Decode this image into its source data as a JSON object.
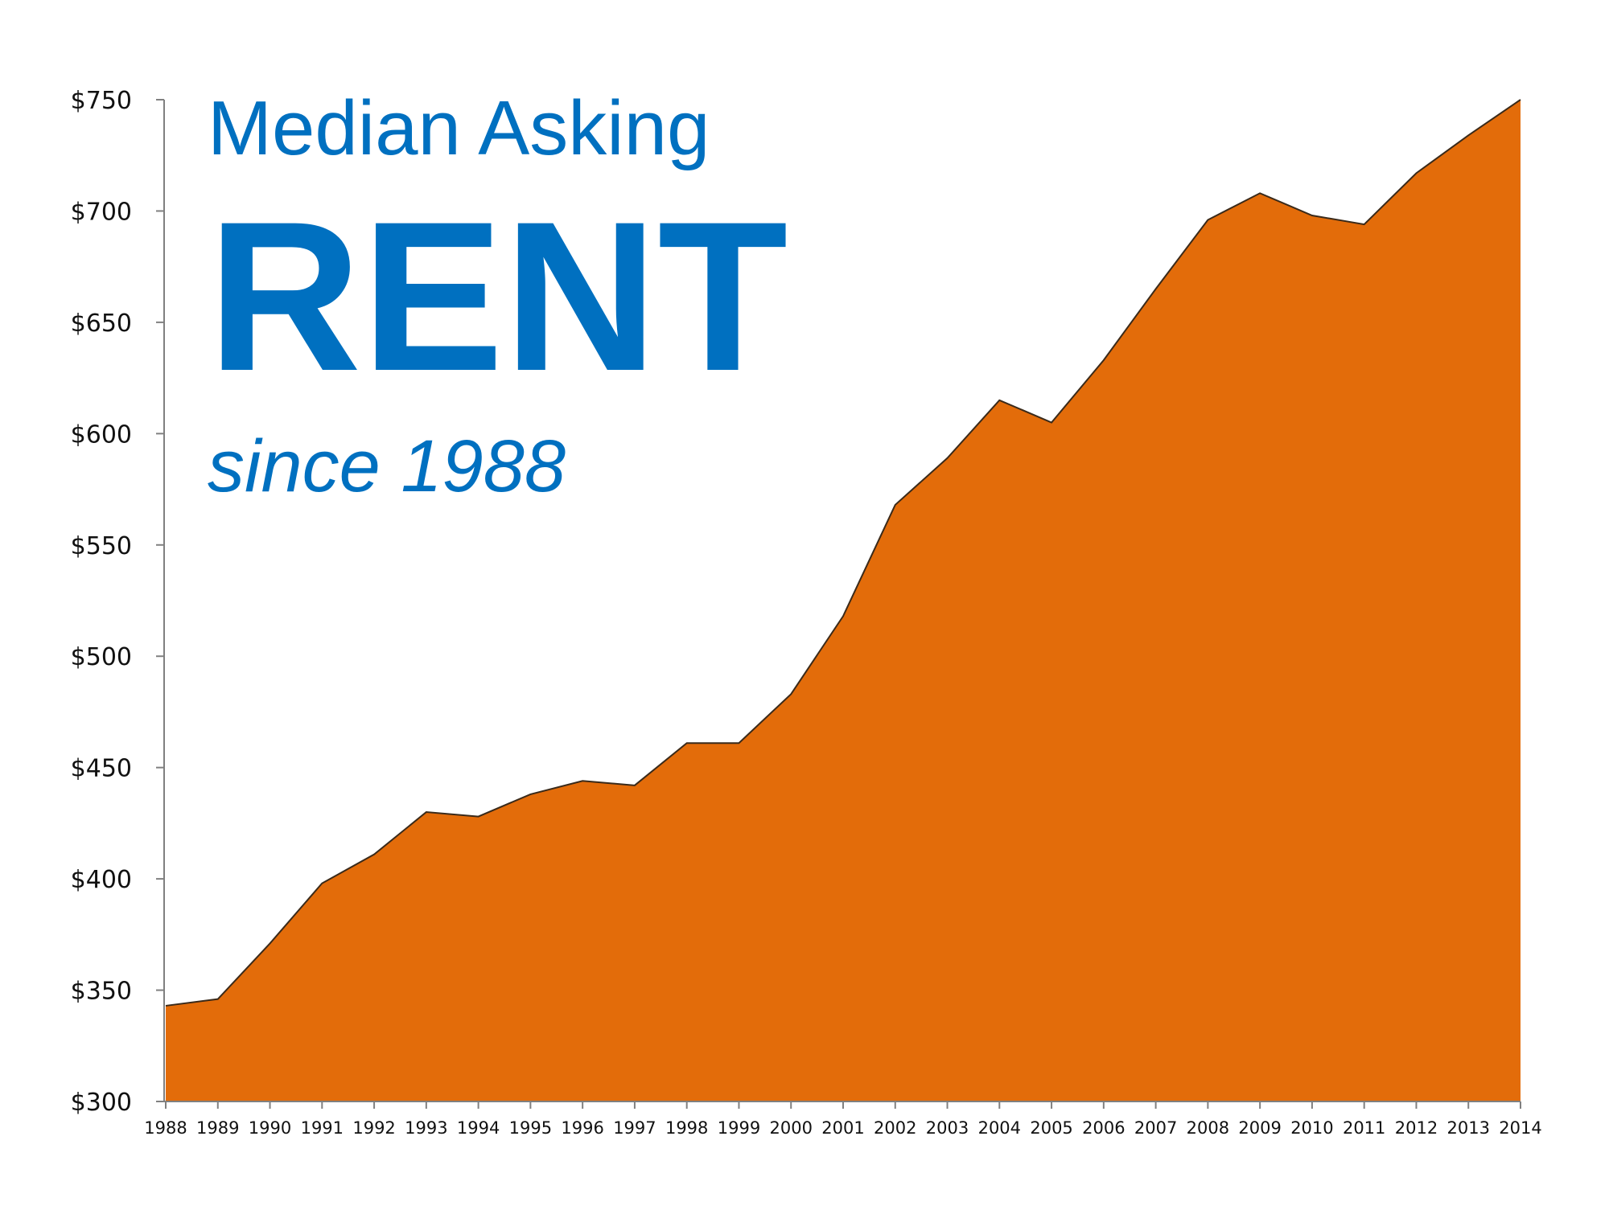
{
  "chart_data": {
    "type": "area",
    "title_lines": [
      "Median Asking",
      "RENT",
      "since 1988"
    ],
    "xlabel": "",
    "ylabel": "",
    "x": [
      "1988",
      "1989",
      "1990",
      "1991",
      "1992",
      "1993",
      "1994",
      "1995",
      "1996",
      "1997",
      "1998",
      "1999",
      "2000",
      "2001",
      "2002",
      "2003",
      "2004",
      "2005",
      "2006",
      "2007",
      "2008",
      "2009",
      "2010",
      "2011",
      "2012",
      "2013",
      "2014"
    ],
    "series": [
      {
        "values": [
          343,
          346,
          371,
          398,
          411,
          430,
          428,
          438,
          444,
          442,
          461,
          461,
          483,
          518,
          568,
          589,
          615,
          605,
          633,
          665,
          696,
          708,
          698,
          694,
          717,
          734,
          756
        ]
      }
    ],
    "ylim": [
      300,
      750
    ],
    "yticks": [
      300,
      350,
      400,
      450,
      500,
      550,
      600,
      650,
      700,
      750
    ],
    "ytick_labels": [
      "$300",
      "$350",
      "$400",
      "$450",
      "$500",
      "$550",
      "$600",
      "$650",
      "$700",
      "$750"
    ],
    "grid": false,
    "legend": "none",
    "colors": {
      "area_fill": "#e36c0a",
      "area_stroke": "#3a2a1a",
      "title": "#0070c0",
      "axis": "#808080"
    }
  }
}
